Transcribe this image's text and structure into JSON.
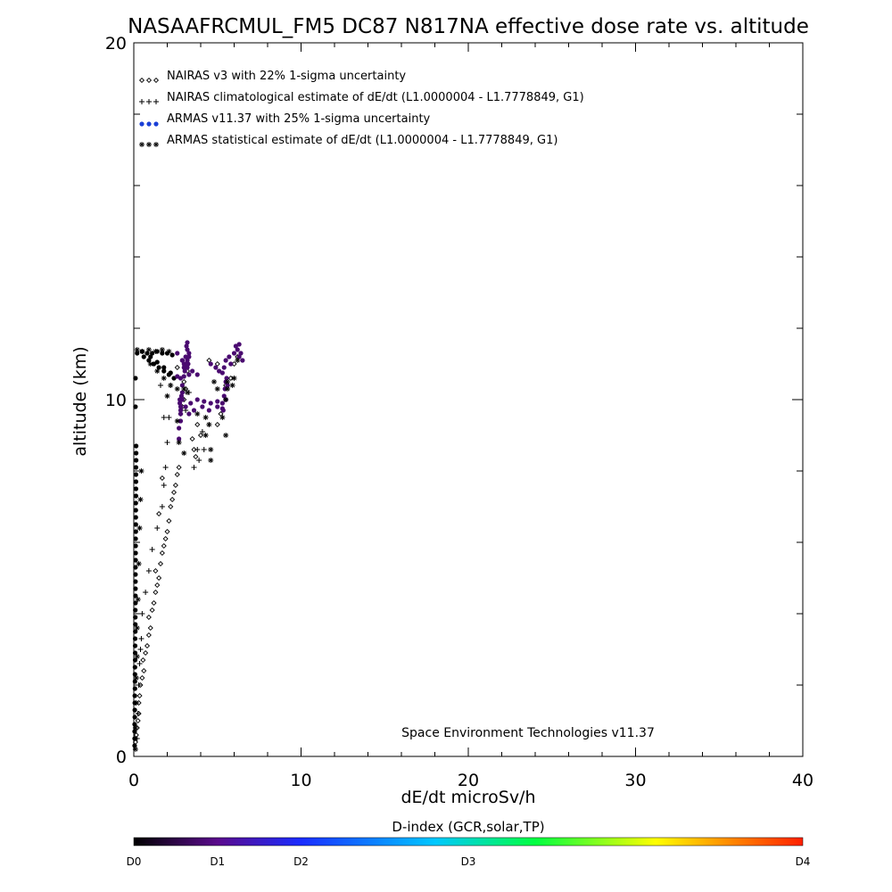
{
  "chart_data": {
    "type": "scatter",
    "title": "NASAAFRCMUL_FM5 DC87 N817NA effective dose rate vs. altitude",
    "xlabel": "dE/dt microSv/h",
    "ylabel": "altitude (km)",
    "xlim": [
      0,
      40
    ],
    "ylim": [
      0,
      20
    ],
    "x_major_ticks": [
      0,
      10,
      20,
      30,
      40
    ],
    "y_major_ticks": [
      0,
      10,
      20
    ],
    "x_tick_labels": [
      "0",
      "10",
      "20",
      "30",
      "40"
    ],
    "y_tick_labels": [
      "0",
      "10",
      "20"
    ],
    "grid": false,
    "legend_position": "top-left",
    "credit": "Space Environment Technologies v11.37",
    "legend": [
      {
        "marker": "diamond",
        "marker_text": "◇◇◇",
        "text": "NAIRAS v3 with 22% 1-sigma uncertainty",
        "color": "#000000"
      },
      {
        "marker": "plus",
        "marker_text": "+++",
        "text": "NAIRAS climatological estimate of dE/dt (L1.0000004 - L1.7778849, G1)",
        "color": "#000000"
      },
      {
        "marker": "dot",
        "marker_text": "●●●",
        "text": "ARMAS v11.37 with 25% 1-sigma uncertainty",
        "color": "#1a3fd6"
      },
      {
        "marker": "asterisk",
        "marker_text": "***",
        "text": "ARMAS statistical estimate of dE/dt (L1.0000004 - L1.7778849, G1)",
        "color": "#000000"
      }
    ],
    "colorbar": {
      "title": "D-index (GCR,solar,TP)",
      "labels": [
        {
          "text": "D0",
          "pos": 0.0
        },
        {
          "text": "D1",
          "pos": 0.125
        },
        {
          "text": "D2",
          "pos": 0.25
        },
        {
          "text": "D3",
          "pos": 0.5
        },
        {
          "text": "D4",
          "pos": 1.0
        }
      ],
      "colors": [
        "#000000",
        "#5a0a8c",
        "#1a2cff",
        "#00c8ff",
        "#00ff40",
        "#ffff00",
        "#ff8000",
        "#ff2000"
      ]
    },
    "series": [
      {
        "name": "NAIRAS v3 with 22% 1-sigma uncertainty",
        "marker": "diamond",
        "points": [
          [
            0.1,
            0.4
          ],
          [
            0.15,
            0.6
          ],
          [
            0.2,
            0.8
          ],
          [
            0.25,
            1.0
          ],
          [
            0.3,
            1.2
          ],
          [
            0.3,
            1.5
          ],
          [
            0.35,
            1.7
          ],
          [
            0.4,
            2.0
          ],
          [
            0.5,
            2.2
          ],
          [
            0.6,
            2.4
          ],
          [
            0.55,
            2.7
          ],
          [
            0.7,
            2.9
          ],
          [
            0.8,
            3.1
          ],
          [
            0.9,
            3.4
          ],
          [
            1.0,
            3.6
          ],
          [
            0.9,
            3.9
          ],
          [
            1.1,
            4.1
          ],
          [
            1.2,
            4.3
          ],
          [
            1.3,
            4.6
          ],
          [
            1.4,
            4.8
          ],
          [
            1.5,
            5.0
          ],
          [
            1.3,
            5.2
          ],
          [
            1.6,
            5.4
          ],
          [
            1.7,
            5.7
          ],
          [
            1.8,
            5.9
          ],
          [
            1.9,
            6.1
          ],
          [
            2.0,
            6.3
          ],
          [
            2.1,
            6.6
          ],
          [
            1.5,
            6.8
          ],
          [
            2.2,
            7.0
          ],
          [
            2.3,
            7.2
          ],
          [
            2.4,
            7.4
          ],
          [
            2.5,
            7.6
          ],
          [
            1.7,
            7.8
          ],
          [
            2.6,
            7.9
          ],
          [
            2.7,
            8.1
          ],
          [
            3.7,
            8.4
          ],
          [
            3.6,
            8.6
          ],
          [
            3.5,
            8.9
          ],
          [
            4.0,
            9.0
          ],
          [
            3.8,
            9.3
          ],
          [
            5.0,
            9.3
          ],
          [
            2.8,
            9.6
          ],
          [
            5.2,
            9.6
          ],
          [
            2.9,
            9.8
          ],
          [
            3.0,
            10.0
          ],
          [
            3.1,
            10.3
          ],
          [
            3.0,
            10.5
          ],
          [
            5.5,
            10.4
          ],
          [
            5.8,
            10.6
          ],
          [
            3.2,
            10.8
          ],
          [
            2.6,
            10.9
          ],
          [
            6.0,
            11.0
          ],
          [
            6.2,
            11.2
          ],
          [
            4.5,
            11.1
          ],
          [
            5.0,
            11.0
          ]
        ]
      },
      {
        "name": "NAIRAS climatological estimate of dE/dt (L1.0000004 - L1.7778849, G1)",
        "marker": "plus",
        "points": [
          [
            0.2,
            0.5
          ],
          [
            0.25,
            1.2
          ],
          [
            0.3,
            2.0
          ],
          [
            0.35,
            2.6
          ],
          [
            0.4,
            3.0
          ],
          [
            0.45,
            3.3
          ],
          [
            0.5,
            4.0
          ],
          [
            0.7,
            4.6
          ],
          [
            0.9,
            5.2
          ],
          [
            1.1,
            5.8
          ],
          [
            1.4,
            6.4
          ],
          [
            1.7,
            7.0
          ],
          [
            1.8,
            7.6
          ],
          [
            1.9,
            8.1
          ],
          [
            2.0,
            8.8
          ],
          [
            1.8,
            9.5
          ],
          [
            2.1,
            9.5
          ],
          [
            3.6,
            8.1
          ],
          [
            3.9,
            8.3
          ],
          [
            3.8,
            8.6
          ],
          [
            4.2,
            8.6
          ],
          [
            4.1,
            9.1
          ],
          [
            4.5,
            9.3
          ],
          [
            3.3,
            10.2
          ],
          [
            1.6,
            10.4
          ],
          [
            2.2,
            10.4
          ],
          [
            3.1,
            9.7
          ]
        ]
      },
      {
        "name": "ARMAS v11.37 with 25% 1-sigma uncertainty",
        "marker": "dot",
        "points": [
          [
            0.05,
            0.3
          ],
          [
            0.05,
            0.5
          ],
          [
            0.05,
            0.7
          ],
          [
            0.05,
            0.9
          ],
          [
            0.06,
            1.1
          ],
          [
            0.06,
            1.3
          ],
          [
            0.06,
            1.5
          ],
          [
            0.06,
            1.7
          ],
          [
            0.07,
            1.9
          ],
          [
            0.07,
            2.1
          ],
          [
            0.07,
            2.3
          ],
          [
            0.07,
            2.5
          ],
          [
            0.08,
            2.7
          ],
          [
            0.08,
            2.9
          ],
          [
            0.08,
            3.1
          ],
          [
            0.08,
            3.3
          ],
          [
            0.09,
            3.5
          ],
          [
            0.09,
            3.7
          ],
          [
            0.09,
            3.9
          ],
          [
            0.09,
            4.1
          ],
          [
            0.1,
            4.3
          ],
          [
            0.1,
            4.5
          ],
          [
            0.1,
            4.7
          ],
          [
            0.1,
            4.9
          ],
          [
            0.1,
            5.1
          ],
          [
            0.1,
            5.3
          ],
          [
            0.11,
            5.5
          ],
          [
            0.11,
            5.7
          ],
          [
            0.11,
            5.9
          ],
          [
            0.11,
            6.1
          ],
          [
            0.12,
            6.3
          ],
          [
            0.12,
            6.5
          ],
          [
            0.12,
            6.7
          ],
          [
            0.12,
            6.9
          ],
          [
            0.12,
            7.1
          ],
          [
            0.13,
            7.3
          ],
          [
            0.13,
            7.5
          ],
          [
            0.13,
            7.7
          ],
          [
            0.13,
            7.9
          ],
          [
            0.13,
            8.1
          ],
          [
            0.14,
            8.3
          ],
          [
            0.14,
            8.5
          ],
          [
            0.14,
            8.7
          ],
          [
            0.1,
            9.8
          ],
          [
            0.1,
            10.6
          ],
          [
            0.2,
            11.3
          ],
          [
            0.5,
            11.35
          ],
          [
            0.8,
            11.3
          ],
          [
            1.1,
            11.3
          ],
          [
            1.4,
            11.35
          ],
          [
            1.7,
            11.3
          ],
          [
            2.0,
            11.3
          ],
          [
            2.3,
            11.25
          ],
          [
            0.6,
            11.2
          ],
          [
            0.9,
            11.1
          ],
          [
            1.2,
            11.0
          ],
          [
            1.5,
            10.9
          ],
          [
            1.8,
            10.8
          ],
          [
            2.1,
            10.7
          ],
          [
            2.4,
            10.6
          ],
          [
            1.0,
            11.2
          ],
          [
            1.4,
            11.05
          ],
          [
            1.8,
            10.9
          ],
          [
            2.2,
            10.75
          ],
          [
            2.6,
            10.65
          ],
          [
            3.0,
            10.65
          ],
          [
            3.3,
            10.7
          ],
          [
            2.6,
            11.3
          ],
          [
            2.9,
            11.1
          ],
          [
            3.2,
            10.9
          ],
          [
            3.5,
            10.8
          ],
          [
            3.8,
            10.7
          ],
          [
            2.8,
            10.6
          ],
          [
            2.9,
            10.4
          ],
          [
            2.9,
            10.2
          ],
          [
            2.9,
            10.0
          ],
          [
            2.8,
            9.8
          ],
          [
            2.8,
            9.6
          ],
          [
            2.8,
            9.4
          ],
          [
            2.7,
            9.2
          ],
          [
            2.7,
            8.9
          ],
          [
            3.1,
            9.8
          ],
          [
            3.4,
            9.9
          ],
          [
            3.8,
            10.0
          ],
          [
            4.2,
            9.95
          ],
          [
            4.6,
            9.9
          ],
          [
            5.0,
            9.8
          ],
          [
            5.3,
            9.75
          ],
          [
            3.3,
            9.6
          ],
          [
            3.6,
            9.7
          ],
          [
            4.1,
            9.8
          ],
          [
            4.5,
            9.7
          ],
          [
            5.0,
            9.95
          ],
          [
            5.5,
            10.0
          ],
          [
            4.6,
            11.0
          ],
          [
            4.9,
            10.9
          ],
          [
            5.1,
            10.8
          ],
          [
            5.3,
            10.75
          ],
          [
            5.4,
            10.9
          ],
          [
            5.5,
            11.1
          ],
          [
            5.7,
            11.2
          ],
          [
            5.8,
            11.0
          ],
          [
            6.0,
            11.3
          ],
          [
            6.2,
            11.4
          ],
          [
            6.4,
            11.3
          ],
          [
            6.5,
            11.1
          ],
          [
            6.3,
            11.2
          ],
          [
            2.9,
            11.1
          ],
          [
            3.0,
            11.0
          ],
          [
            3.0,
            10.9
          ],
          [
            3.05,
            10.8
          ],
          [
            3.1,
            11.0
          ],
          [
            3.1,
            11.2
          ],
          [
            3.15,
            10.9
          ],
          [
            3.2,
            11.1
          ],
          [
            3.3,
            11.3
          ],
          [
            3.2,
            11.4
          ],
          [
            3.3,
            11.2
          ],
          [
            3.25,
            11.0
          ],
          [
            2.75,
            10.0
          ],
          [
            2.75,
            9.9
          ],
          [
            2.8,
            9.7
          ],
          [
            2.85,
            10.1
          ],
          [
            5.3,
            9.9
          ],
          [
            5.4,
            10.1
          ],
          [
            5.35,
            9.7
          ],
          [
            5.45,
            10.3
          ],
          [
            5.5,
            10.5
          ],
          [
            5.55,
            10.6
          ],
          [
            5.6,
            10.4
          ],
          [
            3.15,
            11.5
          ],
          [
            3.2,
            11.6
          ],
          [
            6.1,
            11.5
          ],
          [
            6.3,
            11.55
          ]
        ]
      },
      {
        "name": "ARMAS statistical estimate of dE/dt (L1.0000004 - L1.7778849, G1)",
        "marker": "asterisk",
        "points": [
          [
            0.1,
            0.2
          ],
          [
            0.1,
            0.8
          ],
          [
            0.15,
            1.5
          ],
          [
            0.15,
            2.2
          ],
          [
            0.2,
            2.8
          ],
          [
            0.2,
            3.6
          ],
          [
            0.25,
            4.4
          ],
          [
            0.3,
            5.4
          ],
          [
            0.35,
            6.4
          ],
          [
            0.4,
            7.2
          ],
          [
            0.45,
            8.0
          ],
          [
            0.2,
            11.4
          ],
          [
            0.5,
            11.35
          ],
          [
            0.9,
            11.4
          ],
          [
            1.3,
            11.35
          ],
          [
            1.7,
            11.4
          ],
          [
            2.1,
            11.35
          ],
          [
            1.0,
            11.0
          ],
          [
            1.4,
            10.8
          ],
          [
            1.8,
            10.6
          ],
          [
            2.2,
            10.4
          ],
          [
            2.0,
            10.1
          ],
          [
            2.6,
            10.3
          ],
          [
            3.0,
            10.3
          ],
          [
            3.2,
            10.2
          ],
          [
            4.3,
            9.0
          ],
          [
            4.6,
            8.6
          ],
          [
            4.6,
            8.3
          ],
          [
            4.5,
            9.3
          ],
          [
            5.3,
            9.5
          ],
          [
            5.5,
            9.0
          ],
          [
            5.5,
            10.0
          ],
          [
            5.6,
            10.3
          ],
          [
            5.6,
            10.5
          ],
          [
            5.9,
            10.4
          ],
          [
            6.0,
            10.6
          ],
          [
            6.2,
            11.1
          ],
          [
            4.8,
            10.5
          ],
          [
            5.0,
            10.3
          ],
          [
            3.8,
            9.6
          ],
          [
            4.3,
            9.5
          ],
          [
            2.6,
            9.4
          ],
          [
            2.7,
            8.8
          ],
          [
            3.0,
            8.5
          ]
        ]
      }
    ]
  }
}
